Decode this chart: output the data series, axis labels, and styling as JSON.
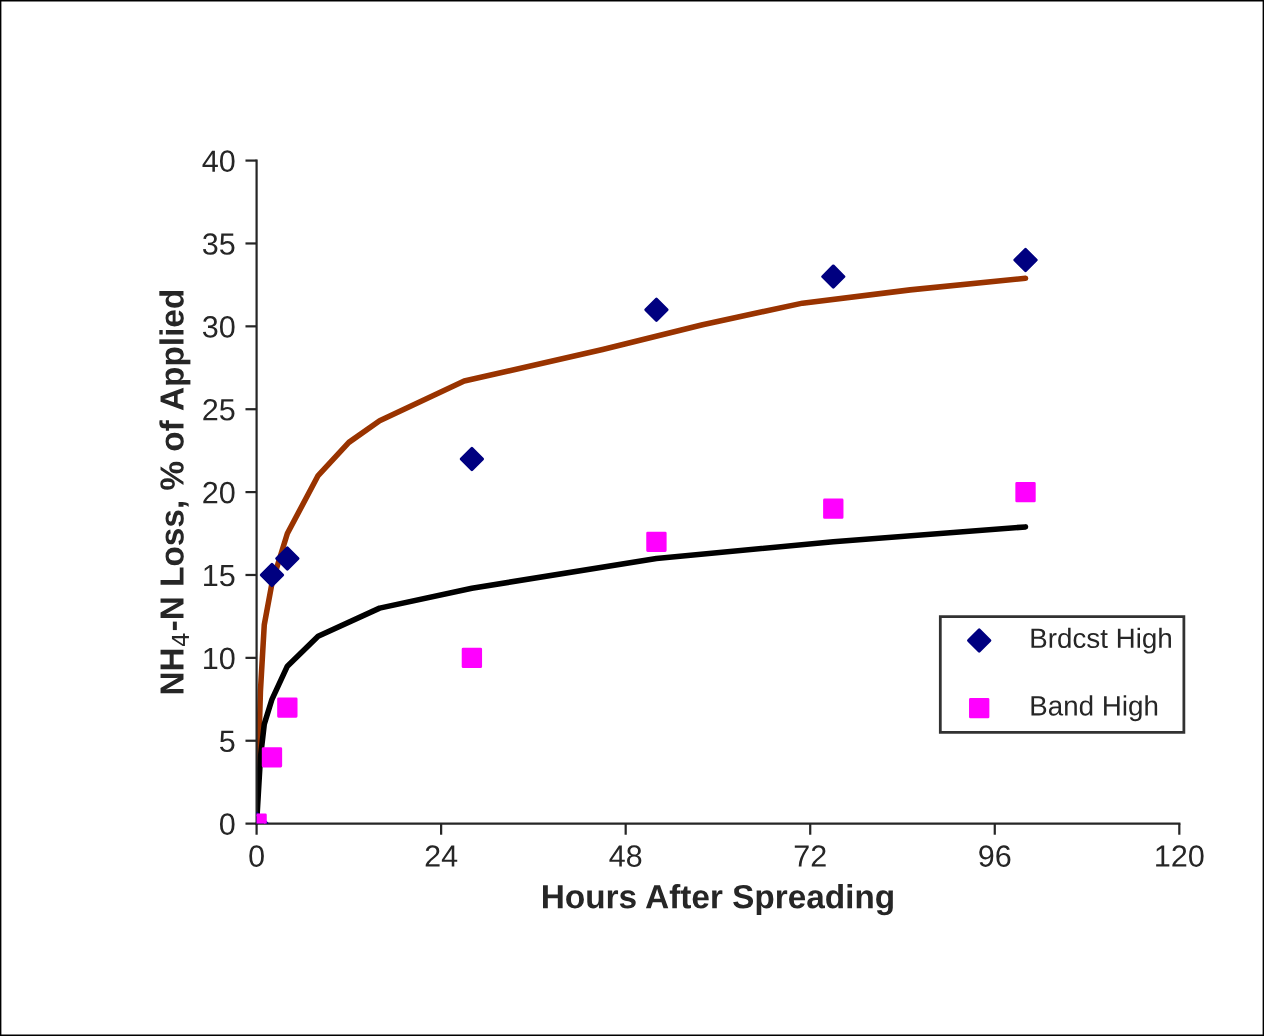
{
  "chart_data": {
    "type": "scatter",
    "xlabel": "Hours After Spreading",
    "ylabel": "NH$_{4}$-N Loss, % of Applied",
    "xlim": [
      0,
      120
    ],
    "xticks": [
      0,
      24,
      48,
      72,
      96,
      120
    ],
    "ylim": [
      0,
      40
    ],
    "yticks": [
      0,
      5,
      10,
      15,
      20,
      25,
      30,
      35,
      40
    ],
    "grid": false,
    "legend": "right",
    "series": [
      {
        "type": "line",
        "color": "#993300",
        "marker": "none",
        "line_style": "solid",
        "x": [
          0,
          0.5,
          1,
          2,
          4,
          8,
          12,
          16,
          27,
          45,
          58,
          71,
          85,
          100
        ],
        "values": [
          0,
          8,
          12,
          14.5,
          17.5,
          21,
          23,
          24.3,
          26.7,
          28.6,
          30.1,
          31.4,
          32.2,
          32.9
        ]
      },
      {
        "type": "line",
        "color": "#000000",
        "marker": "none",
        "line_style": "solid",
        "x": [
          0,
          0.5,
          1,
          2,
          4,
          8,
          16,
          28,
          52,
          75,
          100
        ],
        "values": [
          0,
          4,
          6,
          7.5,
          9.5,
          11.3,
          13,
          14.2,
          16,
          17,
          17.9
        ]
      },
      {
        "name": "Brdcst High",
        "color": "#000080",
        "marker": "diamond",
        "x": [
          0,
          2,
          4,
          28,
          52,
          75,
          100
        ],
        "values": [
          0,
          15,
          16,
          22,
          31,
          33,
          34
        ]
      },
      {
        "name": "Band High",
        "color": "#ff00ff",
        "marker": "square",
        "x": [
          0,
          2,
          4,
          28,
          52,
          75,
          100
        ],
        "values": [
          0,
          4,
          7,
          10,
          17,
          19,
          20
        ]
      }
    ]
  }
}
